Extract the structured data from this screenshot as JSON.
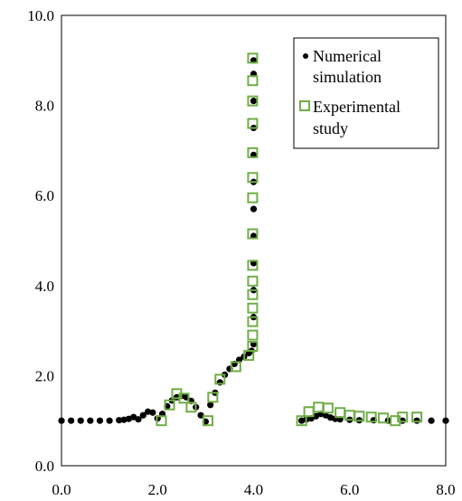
{
  "chart_data": {
    "type": "scatter",
    "title": "",
    "xlabel": "",
    "ylabel": "",
    "xlim": [
      0,
      8
    ],
    "ylim": [
      0,
      10
    ],
    "x_ticks": [
      "0.0",
      "2.0",
      "4.0",
      "6.0",
      "8.0"
    ],
    "y_ticks": [
      "0.0",
      "2.0",
      "4.0",
      "6.0",
      "8.0",
      "10.0"
    ],
    "grid": false,
    "legend_position": "top-right",
    "legend": {
      "numerical_line1": "Numerical",
      "numerical_line2": "simulation",
      "experimental_line1": "Experimental",
      "experimental_line2": "study"
    },
    "series": [
      {
        "marker": "dot",
        "color": "#000000",
        "points": [
          [
            0.0,
            1.0
          ],
          [
            0.2,
            1.0
          ],
          [
            0.4,
            1.0
          ],
          [
            0.6,
            1.0
          ],
          [
            0.8,
            1.0
          ],
          [
            1.0,
            1.0
          ],
          [
            1.2,
            1.01
          ],
          [
            1.3,
            1.02
          ],
          [
            1.4,
            1.04
          ],
          [
            1.5,
            1.08
          ],
          [
            1.6,
            1.03
          ],
          [
            1.7,
            1.12
          ],
          [
            1.8,
            1.2
          ],
          [
            1.9,
            1.18
          ],
          [
            2.0,
            1.05
          ],
          [
            2.1,
            1.15
          ],
          [
            2.2,
            1.32
          ],
          [
            2.3,
            1.45
          ],
          [
            2.4,
            1.52
          ],
          [
            2.5,
            1.55
          ],
          [
            2.6,
            1.52
          ],
          [
            2.7,
            1.44
          ],
          [
            2.8,
            1.3
          ],
          [
            2.9,
            1.12
          ],
          [
            3.0,
            0.98
          ],
          [
            3.1,
            1.35
          ],
          [
            3.2,
            1.62
          ],
          [
            3.3,
            1.85
          ],
          [
            3.4,
            2.02
          ],
          [
            3.5,
            2.15
          ],
          [
            3.6,
            2.26
          ],
          [
            3.7,
            2.35
          ],
          [
            3.8,
            2.42
          ],
          [
            3.9,
            2.5
          ],
          [
            3.96,
            2.55
          ],
          [
            4.0,
            2.7
          ],
          [
            4.0,
            3.3
          ],
          [
            4.0,
            3.9
          ],
          [
            4.0,
            4.5
          ],
          [
            4.0,
            5.1
          ],
          [
            4.0,
            5.7
          ],
          [
            4.0,
            6.3
          ],
          [
            4.0,
            6.9
          ],
          [
            4.0,
            7.5
          ],
          [
            4.0,
            8.1
          ],
          [
            4.0,
            8.7
          ],
          [
            4.0,
            9.0
          ],
          [
            5.0,
            1.0
          ],
          [
            5.1,
            1.03
          ],
          [
            5.2,
            1.05
          ],
          [
            5.3,
            1.1
          ],
          [
            5.4,
            1.15
          ],
          [
            5.5,
            1.12
          ],
          [
            5.6,
            1.07
          ],
          [
            5.7,
            1.04
          ],
          [
            5.8,
            1.03
          ],
          [
            6.0,
            1.02
          ],
          [
            6.2,
            1.01
          ],
          [
            6.5,
            1.01
          ],
          [
            6.8,
            1.0
          ],
          [
            7.1,
            1.0
          ],
          [
            7.4,
            1.0
          ],
          [
            7.7,
            1.0
          ],
          [
            8.0,
            1.0
          ]
        ]
      },
      {
        "marker": "open-square",
        "color": "#70ad47",
        "points": [
          [
            2.08,
            1.0
          ],
          [
            2.25,
            1.35
          ],
          [
            2.4,
            1.6
          ],
          [
            2.55,
            1.5
          ],
          [
            2.7,
            1.3
          ],
          [
            3.05,
            1.0
          ],
          [
            3.15,
            1.52
          ],
          [
            3.3,
            1.92
          ],
          [
            3.63,
            2.2
          ],
          [
            3.9,
            2.45
          ],
          [
            3.98,
            2.65
          ],
          [
            3.98,
            2.9
          ],
          [
            3.98,
            3.2
          ],
          [
            3.98,
            3.5
          ],
          [
            3.98,
            3.8
          ],
          [
            3.98,
            4.1
          ],
          [
            3.98,
            4.45
          ],
          [
            3.98,
            5.15
          ],
          [
            3.98,
            5.95
          ],
          [
            3.98,
            6.4
          ],
          [
            3.98,
            6.95
          ],
          [
            3.98,
            7.6
          ],
          [
            3.98,
            8.1
          ],
          [
            3.98,
            8.55
          ],
          [
            3.98,
            9.05
          ],
          [
            5.0,
            1.0
          ],
          [
            5.15,
            1.2
          ],
          [
            5.35,
            1.3
          ],
          [
            5.55,
            1.28
          ],
          [
            5.8,
            1.18
          ],
          [
            6.0,
            1.12
          ],
          [
            6.2,
            1.1
          ],
          [
            6.45,
            1.08
          ],
          [
            6.7,
            1.06
          ],
          [
            6.95,
            1.0
          ],
          [
            7.1,
            1.08
          ],
          [
            7.4,
            1.08
          ]
        ]
      }
    ]
  }
}
